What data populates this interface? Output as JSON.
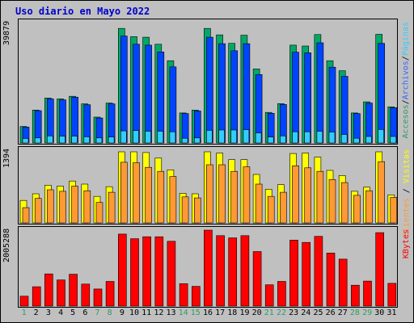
{
  "chart_data": {
    "type": "bar",
    "title": "Uso diario en Mayo 2022",
    "x": [
      "1",
      "2",
      "3",
      "4",
      "5",
      "6",
      "7",
      "8",
      "9",
      "10",
      "11",
      "12",
      "13",
      "14",
      "15",
      "16",
      "17",
      "18",
      "19",
      "20",
      "21",
      "22",
      "23",
      "24",
      "25",
      "26",
      "27",
      "28",
      "29",
      "30",
      "31"
    ],
    "weekend_days": [
      "1",
      "7",
      "8",
      "14",
      "15",
      "21",
      "22",
      "28",
      "29"
    ],
    "panels": [
      {
        "name": "accesses",
        "max_label": "39879",
        "ymax": 39879,
        "labels": [
          "Accesos",
          "/",
          "Archivos",
          "/",
          "Páginas"
        ],
        "label_colors": [
          "#339966",
          "#000000",
          "#3366ff",
          "#000000",
          "#33ccff"
        ],
        "series": [
          {
            "name": "Accesos",
            "color": "#00aa66",
            "values": [
              5600,
              11200,
              15300,
              15000,
              15900,
              13300,
              8800,
              13600,
              39000,
              36200,
              36000,
              33600,
              28000,
              10200,
              11200,
              39000,
              36800,
              33900,
              36700,
              25200,
              10400,
              13400,
              33300,
              33000,
              36900,
              28000,
              24600,
              10200,
              14000,
              37000,
              12300
            ]
          },
          {
            "name": "Archivos",
            "color": "#0044ff",
            "values": [
              5400,
              11000,
              15000,
              14700,
              15600,
              13000,
              8500,
              13300,
              36400,
              33600,
              33300,
              31000,
              25900,
              10000,
              10900,
              36000,
              33800,
              31400,
              33800,
              23300,
              10100,
              13100,
              30900,
              30700,
              34100,
              25800,
              22700,
              10000,
              13600,
              33900,
              12000
            ]
          },
          {
            "name": "Páginas",
            "color": "#33ccff",
            "values": [
              1500,
              1700,
              2400,
              2300,
              2300,
              2100,
              1700,
              2000,
              4100,
              4200,
              4000,
              4000,
              3800,
              1600,
              1700,
              4300,
              4400,
              4400,
              4500,
              3400,
              2000,
              2400,
              3800,
              3800,
              4000,
              3700,
              2900,
              1600,
              2200,
              4600,
              2200
            ]
          }
        ]
      },
      {
        "name": "visitors",
        "max_label": "1394",
        "ymax": 1394,
        "labels": [
          "Clientes",
          " / ",
          "Visitas"
        ],
        "label_colors": [
          "#ff9933",
          "#000000",
          "#ffff00"
        ],
        "series": [
          {
            "name": "Visitas",
            "color": "#ffff00",
            "values": [
              440,
              570,
              740,
              720,
              820,
              760,
              520,
              710,
              1410,
              1410,
              1380,
              1270,
              1040,
              580,
              570,
              1410,
              1370,
              1240,
              1240,
              950,
              660,
              750,
              1360,
              1370,
              1290,
              1030,
              930,
              620,
              700,
              1420,
              550
            ]
          },
          {
            "name": "Clientes",
            "color": "#ff9933",
            "values": [
              300,
              480,
              650,
              620,
              720,
              630,
              400,
              600,
              1190,
              1180,
              1090,
              1010,
              910,
              510,
              490,
              1140,
              1140,
              1010,
              1100,
              760,
              520,
              600,
              1120,
              1080,
              1010,
              850,
              790,
              540,
              630,
              1200,
              500
            ]
          }
        ]
      },
      {
        "name": "kbytes",
        "max_label": "2005288",
        "ymax": 2005288,
        "labels": [
          "KBytes"
        ],
        "label_colors": [
          "#ff0000"
        ],
        "series": [
          {
            "name": "KBytes",
            "color": "#ff0000",
            "values": [
              260000,
              510000,
              850000,
              690000,
              840000,
              580000,
              450000,
              650000,
              1900000,
              1780000,
              1830000,
              1830000,
              1710000,
              590000,
              520000,
              2100000,
              1860000,
              1800000,
              1860000,
              1440000,
              560000,
              650000,
              1740000,
              1680000,
              1840000,
              1400000,
              1240000,
              550000,
              660000,
              1940000,
              600000
            ]
          }
        ]
      }
    ]
  }
}
